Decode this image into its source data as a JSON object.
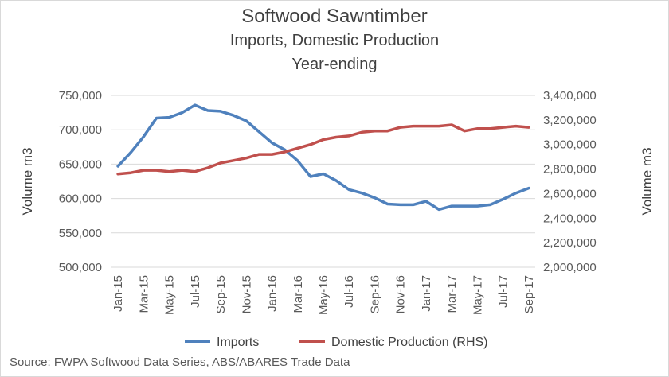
{
  "chart_data": {
    "type": "line",
    "title": "Softwood Sawntimber",
    "subtitle_line1": "Imports, Domestic Production",
    "subtitle_line2": "Year-ending",
    "ylabel_left": "Volume m3",
    "ylabel_right": "Volume m3",
    "ylim_left": [
      500000,
      750000
    ],
    "ylim_right": [
      2000000,
      3400000
    ],
    "yticks_left": [
      "500,000",
      "550,000",
      "600,000",
      "650,000",
      "700,000",
      "750,000"
    ],
    "yticks_right": [
      "2,000,000",
      "2,200,000",
      "2,400,000",
      "2,600,000",
      "2,800,000",
      "3,000,000",
      "3,200,000",
      "3,400,000"
    ],
    "x": [
      "Jan-15",
      "Feb-15",
      "Mar-15",
      "Apr-15",
      "May-15",
      "Jun-15",
      "Jul-15",
      "Aug-15",
      "Sep-15",
      "Oct-15",
      "Nov-15",
      "Dec-15",
      "Jan-16",
      "Feb-16",
      "Mar-16",
      "Apr-16",
      "May-16",
      "Jun-16",
      "Jul-16",
      "Aug-16",
      "Sep-16",
      "Oct-16",
      "Nov-16",
      "Dec-16",
      "Jan-17",
      "Feb-17",
      "Mar-17",
      "Apr-17",
      "May-17",
      "Jun-17",
      "Jul-17",
      "Aug-17",
      "Sep-17"
    ],
    "x_tick_labels": [
      "Jan-15",
      "Mar-15",
      "May-15",
      "Jul-15",
      "Sep-15",
      "Nov-15",
      "Jan-16",
      "Mar-16",
      "May-16",
      "Jul-16",
      "Sep-16",
      "Nov-16",
      "Jan-17",
      "Mar-17",
      "May-17",
      "Jul-17",
      "Sep-17"
    ],
    "grid": true,
    "legend_position": "bottom",
    "series": [
      {
        "name": "Imports",
        "axis": "left",
        "color": "#4f81bd",
        "values": [
          647000,
          667000,
          690000,
          717000,
          718000,
          725000,
          736000,
          728000,
          727000,
          721000,
          713000,
          697000,
          681000,
          671000,
          655000,
          632000,
          636000,
          626000,
          613000,
          608000,
          601000,
          592000,
          591000,
          591000,
          596000,
          584000,
          589000,
          589000,
          589000,
          591000,
          599000,
          608000,
          615000
        ]
      },
      {
        "name": "Domestic Production (RHS)",
        "axis": "right",
        "color": "#c0504d",
        "values": [
          2760000,
          2770000,
          2790000,
          2790000,
          2780000,
          2790000,
          2780000,
          2810000,
          2850000,
          2870000,
          2890000,
          2920000,
          2920000,
          2940000,
          2970000,
          3000000,
          3040000,
          3060000,
          3070000,
          3100000,
          3110000,
          3110000,
          3140000,
          3150000,
          3150000,
          3150000,
          3160000,
          3110000,
          3130000,
          3130000,
          3140000,
          3150000,
          3140000
        ]
      }
    ]
  },
  "source_note": "Source: FWPA Softwood Data Series, ABS/ABARES Trade Data"
}
